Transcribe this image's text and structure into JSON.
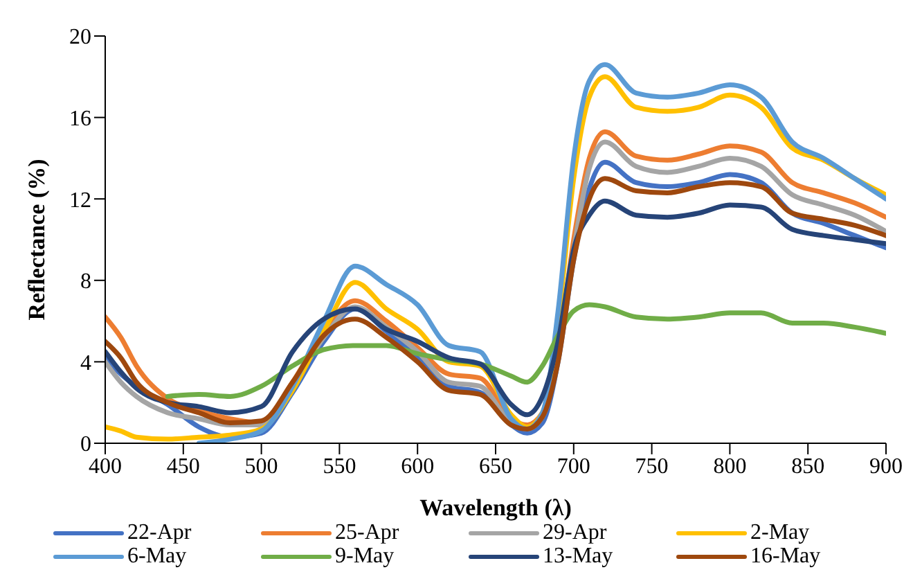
{
  "chart_data": {
    "type": "line",
    "xlabel": "Wavelength (λ)",
    "ylabel": "Reflectance (%)",
    "x": [
      400,
      410,
      420,
      440,
      460,
      480,
      500,
      520,
      540,
      560,
      580,
      600,
      620,
      640,
      660,
      670,
      680,
      690,
      700,
      710,
      720,
      740,
      760,
      780,
      800,
      820,
      840,
      860,
      880,
      900
    ],
    "xlim": [
      400,
      900
    ],
    "xticks": [
      400,
      450,
      500,
      550,
      600,
      650,
      700,
      750,
      800,
      850,
      900
    ],
    "ylim": [
      0,
      20
    ],
    "yticks": [
      0,
      4,
      8,
      12,
      16,
      20
    ],
    "grid": false,
    "legend": "bottom",
    "marker": "none",
    "line_style": "solid",
    "series": [
      {
        "name": "22-Apr",
        "color": "#4472c4",
        "values": [
          4.2,
          3.4,
          2.8,
          1.9,
          0.8,
          0.3,
          0.5,
          2.5,
          5.0,
          6.6,
          5.5,
          4.2,
          2.8,
          2.5,
          0.9,
          0.5,
          1.0,
          4,
          9,
          12.5,
          13.8,
          12.8,
          12.6,
          12.8,
          13.2,
          12.8,
          11.3,
          10.8,
          10.2,
          9.6
        ]
      },
      {
        "name": "25-Apr",
        "color": "#ed7d31",
        "values": [
          6.2,
          5.2,
          3.8,
          2.2,
          1.6,
          1.2,
          1.0,
          3.0,
          5.5,
          7.0,
          6.0,
          4.7,
          3.4,
          3.2,
          1.2,
          0.9,
          1.5,
          4.5,
          10,
          14,
          15.3,
          14.1,
          13.9,
          14.2,
          14.6,
          14.3,
          12.8,
          12.3,
          11.8,
          11.1
        ]
      },
      {
        "name": "29-Apr",
        "color": "#a5a5a5",
        "values": [
          4.0,
          3.0,
          2.3,
          1.5,
          1.2,
          0.9,
          0.9,
          2.8,
          5.2,
          6.7,
          5.7,
          4.5,
          3.0,
          2.8,
          1.0,
          0.7,
          1.3,
          4.2,
          9.5,
          13.5,
          14.8,
          13.6,
          13.3,
          13.6,
          14.0,
          13.6,
          12.2,
          11.7,
          11.2,
          10.4
        ]
      },
      {
        "name": "2-May",
        "color": "#ffc000",
        "values": [
          0.8,
          0.6,
          0.3,
          0.2,
          0.3,
          0.4,
          0.7,
          2.6,
          5.5,
          7.9,
          6.6,
          5.6,
          4.0,
          3.8,
          1.4,
          0.8,
          1.5,
          6,
          13,
          17,
          18.0,
          16.5,
          16.3,
          16.5,
          17.1,
          16.5,
          14.5,
          13.9,
          13.0,
          12.2
        ]
      },
      {
        "name": "6-May",
        "color": "#5b9bd5",
        "values": [
          null,
          null,
          null,
          null,
          0.0,
          0.2,
          0.6,
          2.8,
          6.0,
          8.7,
          7.8,
          6.8,
          4.8,
          4.5,
          1.2,
          0.7,
          1.5,
          6.5,
          14,
          17.8,
          18.6,
          17.2,
          17.0,
          17.2,
          17.6,
          17.0,
          14.8,
          14.0,
          13.0,
          12.0
        ]
      },
      {
        "name": "9-May",
        "color": "#70ad47",
        "values": [
          null,
          null,
          null,
          2.3,
          2.4,
          2.3,
          2.8,
          3.8,
          4.6,
          4.8,
          4.8,
          4.4,
          4.1,
          3.9,
          3.3,
          3.0,
          3.8,
          5.3,
          6.5,
          6.8,
          6.7,
          6.2,
          6.1,
          6.2,
          6.4,
          6.4,
          5.9,
          5.9,
          5.7,
          5.4
        ]
      },
      {
        "name": "13-May",
        "color": "#264478",
        "values": [
          4.5,
          3.5,
          2.7,
          2.0,
          1.8,
          1.5,
          1.8,
          4.5,
          6.1,
          6.6,
          5.6,
          5.0,
          4.2,
          3.9,
          1.9,
          1.4,
          2.3,
          5,
          9.5,
          11.2,
          11.9,
          11.2,
          11.1,
          11.3,
          11.7,
          11.6,
          10.5,
          10.2,
          10.0,
          9.8
        ]
      },
      {
        "name": "16-May",
        "color": "#9e480e",
        "values": [
          5.0,
          4.2,
          3.0,
          2.0,
          1.5,
          1.0,
          1.1,
          3.0,
          5.3,
          6.1,
          5.2,
          4.0,
          2.6,
          2.4,
          0.9,
          0.7,
          1.3,
          4,
          9,
          12,
          13.0,
          12.4,
          12.3,
          12.6,
          12.8,
          12.6,
          11.3,
          11.0,
          10.7,
          10.2
        ]
      }
    ]
  }
}
